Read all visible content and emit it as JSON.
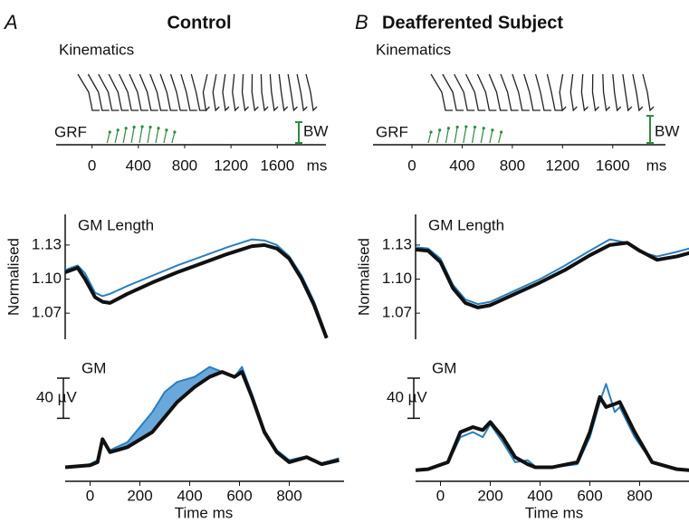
{
  "panels": [
    {
      "letter": "A",
      "title": "Control",
      "kinematics_label": "Kinematics",
      "grf_label": "GRF",
      "bw_label": "BW",
      "grf_xlim": [
        -310,
        2020
      ],
      "grf_xticks": [
        0,
        400,
        800,
        1200,
        1600
      ],
      "grf_unit": "ms"
    },
    {
      "letter": "B",
      "title": "Deafferented Subject",
      "kinematics_label": "Kinematics",
      "grf_label": "GRF",
      "bw_label": "BW",
      "grf_xlim": [
        -310,
        2020
      ],
      "grf_xticks": [
        0,
        400,
        800,
        1200,
        1600
      ],
      "grf_unit": "ms"
    }
  ],
  "chart_data": [
    {
      "type": "line",
      "title": "GM Length",
      "y_label": "Normalised",
      "x": [
        -100,
        -50,
        -20,
        20,
        50,
        80,
        150,
        250,
        350,
        450,
        550,
        650,
        700,
        750,
        800,
        850,
        900,
        950
      ],
      "xlim": [
        -100,
        1020
      ],
      "ylim": [
        1.047,
        1.157
      ],
      "yticks": [
        {
          "value": 1.07,
          "label": "1.07"
        },
        {
          "value": 1.1,
          "label": "1.10"
        },
        {
          "value": 1.13,
          "label": "1.13"
        }
      ],
      "series": [
        {
          "color": "#2a7fc0",
          "values": [
            1.108,
            1.112,
            1.105,
            1.088,
            1.085,
            1.087,
            1.094,
            1.103,
            1.112,
            1.12,
            1.128,
            1.135,
            1.134,
            1.13,
            1.12,
            1.103,
            1.08,
            1.05
          ]
        },
        {
          "color": "#111111",
          "values": [
            1.106,
            1.11,
            1.1,
            1.084,
            1.08,
            1.079,
            1.087,
            1.097,
            1.106,
            1.114,
            1.122,
            1.129,
            1.13,
            1.127,
            1.118,
            1.1,
            1.077,
            1.048
          ]
        }
      ]
    },
    {
      "type": "line",
      "title": "GM",
      "x_label": "Time ms",
      "scale_bar": {
        "value": 40,
        "label": "40 µV"
      },
      "x": [
        -100,
        -50,
        0,
        30,
        50,
        80,
        150,
        250,
        300,
        350,
        420,
        480,
        530,
        580,
        610,
        650,
        700,
        750,
        800,
        870,
        930,
        1000
      ],
      "xlim": [
        -100,
        1020
      ],
      "ylim": [
        0,
        110
      ],
      "xticks": [
        0,
        200,
        400,
        600,
        800
      ],
      "fill_between": true,
      "series": [
        {
          "color": "#2a7fc0",
          "values": [
            5,
            6,
            8,
            12,
            32,
            22,
            30,
            60,
            80,
            90,
            95,
            105,
            100,
            95,
            105,
            78,
            42,
            22,
            12,
            16,
            9,
            14
          ]
        },
        {
          "color": "#111111",
          "values": [
            5,
            6,
            7,
            10,
            33,
            20,
            25,
            40,
            55,
            70,
            85,
            95,
            100,
            95,
            100,
            75,
            40,
            20,
            10,
            15,
            8,
            12
          ]
        }
      ]
    },
    {
      "type": "line",
      "title": "GM Length",
      "y_label": "Normalised",
      "x": [
        -100,
        -50,
        0,
        50,
        100,
        150,
        200,
        300,
        400,
        500,
        600,
        680,
        750,
        800,
        870,
        950,
        1000
      ],
      "xlim": [
        -100,
        1020
      ],
      "ylim": [
        1.047,
        1.157
      ],
      "yticks": [
        {
          "value": 1.07,
          "label": "1.07"
        },
        {
          "value": 1.1,
          "label": "1.10"
        },
        {
          "value": 1.13,
          "label": "1.13"
        }
      ],
      "series": [
        {
          "color": "#2a7fc0",
          "values": [
            1.128,
            1.127,
            1.118,
            1.095,
            1.082,
            1.078,
            1.08,
            1.09,
            1.1,
            1.112,
            1.125,
            1.135,
            1.132,
            1.124,
            1.12,
            1.124,
            1.127
          ]
        },
        {
          "color": "#111111",
          "values": [
            1.126,
            1.125,
            1.115,
            1.092,
            1.079,
            1.075,
            1.077,
            1.087,
            1.097,
            1.108,
            1.121,
            1.13,
            1.132,
            1.125,
            1.117,
            1.12,
            1.123
          ]
        }
      ]
    },
    {
      "type": "line",
      "title": "GM",
      "x_label": "Time ms",
      "scale_bar": {
        "value": 40,
        "label": "40 µV"
      },
      "x": [
        -100,
        -50,
        30,
        80,
        130,
        170,
        200,
        250,
        300,
        350,
        380,
        450,
        550,
        600,
        640,
        665,
        700,
        720,
        780,
        850,
        950,
        1000
      ],
      "xlim": [
        -100,
        1020
      ],
      "ylim": [
        0,
        110
      ],
      "xticks": [
        0,
        200,
        400,
        600,
        800
      ],
      "series": [
        {
          "color": "#2a7fc0",
          "values": [
            2,
            3,
            9,
            35,
            40,
            35,
            48,
            30,
            10,
            12,
            6,
            5,
            8,
            35,
            70,
            88,
            60,
            65,
            35,
            10,
            3,
            2
          ]
        },
        {
          "color": "#111111",
          "values": [
            2,
            3,
            10,
            40,
            45,
            42,
            50,
            35,
            15,
            8,
            5,
            5,
            10,
            40,
            75,
            65,
            68,
            70,
            40,
            10,
            3,
            2
          ]
        }
      ]
    }
  ]
}
